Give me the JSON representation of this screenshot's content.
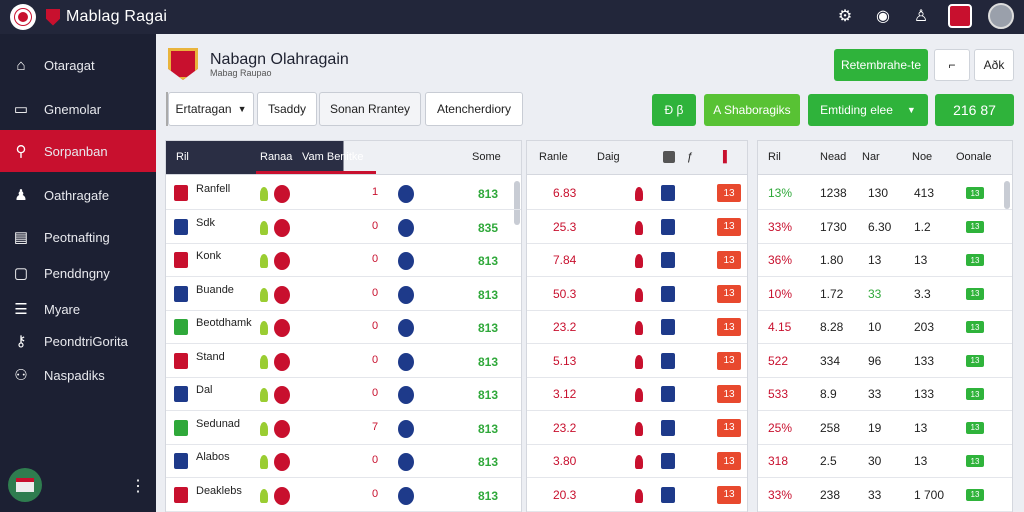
{
  "app": {
    "title": "Mablag Ragai"
  },
  "sidebar": {
    "items": [
      {
        "label": "Otaragat",
        "icon": "house-icon"
      },
      {
        "label": "Gnemolar",
        "icon": "document-icon"
      },
      {
        "label": "Sorpanban",
        "icon": "search-icon",
        "active": true
      },
      {
        "label": "Oathragafe",
        "icon": "users-icon"
      },
      {
        "label": "Peotnafting",
        "icon": "calendar-icon"
      },
      {
        "label": "Penddngny",
        "icon": "inbox-icon"
      },
      {
        "label": "Myare",
        "icon": "list-icon"
      },
      {
        "label": "PeondtriGorita",
        "icon": "key-icon"
      },
      {
        "label": "Naspadiks",
        "icon": "group-icon"
      }
    ]
  },
  "header": {
    "title": "Nabagn Olahragain",
    "subtitle": "Mabag Raupao"
  },
  "actions": {
    "primary": "Retembrahe-te",
    "bookmark_glyph": "⌐",
    "secondary": "Aðk"
  },
  "filters": [
    {
      "label": "Ertatragan",
      "dropdown": true
    },
    {
      "label": "Tsaddy"
    },
    {
      "label": "Sonan Rrantey"
    },
    {
      "label": "Atencherdiory"
    }
  ],
  "quick": {
    "counter": "Đ β",
    "tab": "A Shaboragiks",
    "select": "Emtiding elee",
    "value": "216 87"
  },
  "panel1": {
    "head": {
      "col1": "Ril",
      "col2": "Ranaa",
      "col3": "Vam Benitke",
      "col4": "Some"
    },
    "rows": [
      {
        "name": "Ranfell",
        "score": "1",
        "odds": "813"
      },
      {
        "name": "Sdk",
        "score": "0",
        "odds": "835"
      },
      {
        "name": "Konk",
        "score": "0",
        "odds": "813"
      },
      {
        "name": "Buande",
        "score": "0",
        "odds": "813"
      },
      {
        "name": "Beotdhamk",
        "score": "0",
        "odds": "813"
      },
      {
        "name": "Stand",
        "score": "0",
        "odds": "813"
      },
      {
        "name": "Dal",
        "score": "0",
        "odds": "813"
      },
      {
        "name": "Sedunad",
        "score": "7",
        "odds": "813"
      },
      {
        "name": "Alabos",
        "score": "0",
        "odds": "813"
      },
      {
        "name": "Deaklebs",
        "score": "0",
        "odds": "813"
      }
    ]
  },
  "panel2": {
    "head": {
      "col1": "Ranle",
      "col2": "Daig"
    },
    "rows": [
      {
        "value": "6.83",
        "box": "13"
      },
      {
        "value": "25.3",
        "box": "13"
      },
      {
        "value": "7.84",
        "box": "13"
      },
      {
        "value": "50.3",
        "box": "13"
      },
      {
        "value": "23.2",
        "box": "13"
      },
      {
        "value": "5.13",
        "box": "13"
      },
      {
        "value": "3.12",
        "box": "13"
      },
      {
        "value": "23.2",
        "box": "13"
      },
      {
        "value": "3.80",
        "box": "13"
      },
      {
        "value": "20.3",
        "box": "13"
      }
    ]
  },
  "panel3": {
    "head": {
      "c1": "Ril",
      "c2": "Nead",
      "c3": "Nar",
      "c4": "Noe",
      "c5": "Oonale"
    },
    "rows": [
      {
        "pct": "13%",
        "a": "1238",
        "b": "130",
        "c": "413",
        "chip": "13"
      },
      {
        "pct": "33%",
        "a": "1730",
        "b": "6.30",
        "c": "1.2",
        "chip": "13"
      },
      {
        "pct": "36%",
        "a": "1.80",
        "b": "13",
        "c": "13",
        "chip": "13"
      },
      {
        "pct": "10%",
        "a": "1.72",
        "b": "33",
        "c": "3.3",
        "chip": "13"
      },
      {
        "pct": "4.15",
        "a": "8.28",
        "b": "10",
        "c": "203",
        "chip": "13"
      },
      {
        "pct": "522",
        "a": "334",
        "b": "96",
        "c": "133",
        "chip": "13"
      },
      {
        "pct": "533",
        "a": "8.9",
        "b": "33",
        "c": "133",
        "chip": "13"
      },
      {
        "pct": "25%",
        "a": "258",
        "b": "19",
        "c": "13",
        "chip": "13"
      },
      {
        "pct": "318",
        "a": "2.5",
        "b": "30",
        "c": "13",
        "chip": "13"
      },
      {
        "pct": "33%",
        "a": "238",
        "b": "33",
        "c": "1 700",
        "chip": "13"
      }
    ]
  },
  "colors": {
    "brand_red": "#c8102e",
    "accent_green": "#2fb33b",
    "sidebar_bg": "#1c2033"
  }
}
